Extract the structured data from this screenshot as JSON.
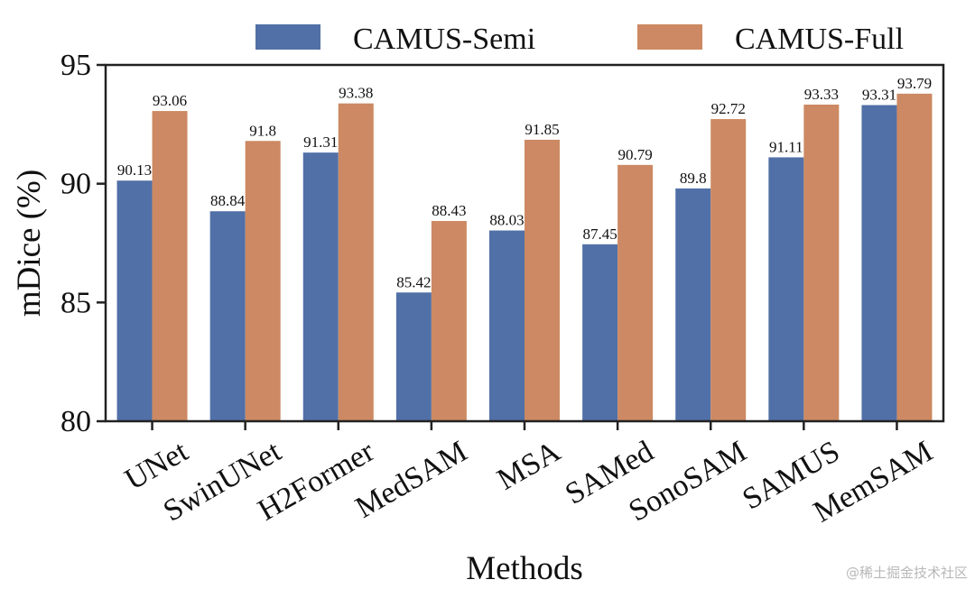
{
  "chart_data": {
    "type": "bar",
    "title": "",
    "xlabel": "Methods",
    "ylabel": "mDice (%)",
    "ylim": [
      80,
      95
    ],
    "yticks": [
      80,
      85,
      90,
      95
    ],
    "categories": [
      "UNet",
      "SwinUNet",
      "H2Former",
      "MedSAM",
      "MSA",
      "SAMed",
      "SonoSAM",
      "SAMUS",
      "MemSAM"
    ],
    "series": [
      {
        "name": "CAMUS-Semi",
        "color": "#5170a7",
        "values": [
          90.13,
          88.84,
          91.31,
          85.42,
          88.03,
          87.45,
          89.8,
          91.11,
          93.31
        ],
        "labels": [
          "90.13",
          "88.84",
          "91.31",
          "85.42",
          "88.03",
          "87.45",
          "89.8",
          "91.11",
          "93.31"
        ]
      },
      {
        "name": "CAMUS-Full",
        "color": "#cc8963",
        "values": [
          93.06,
          91.8,
          93.38,
          88.43,
          91.85,
          90.79,
          92.72,
          93.33,
          93.79
        ],
        "labels": [
          "93.06",
          "91.8",
          "93.38",
          "88.43",
          "91.85",
          "90.79",
          "92.72",
          "93.33",
          "93.79"
        ]
      }
    ],
    "legend_position": "top",
    "grid": false
  },
  "watermark": "@稀土掘金技术社区"
}
